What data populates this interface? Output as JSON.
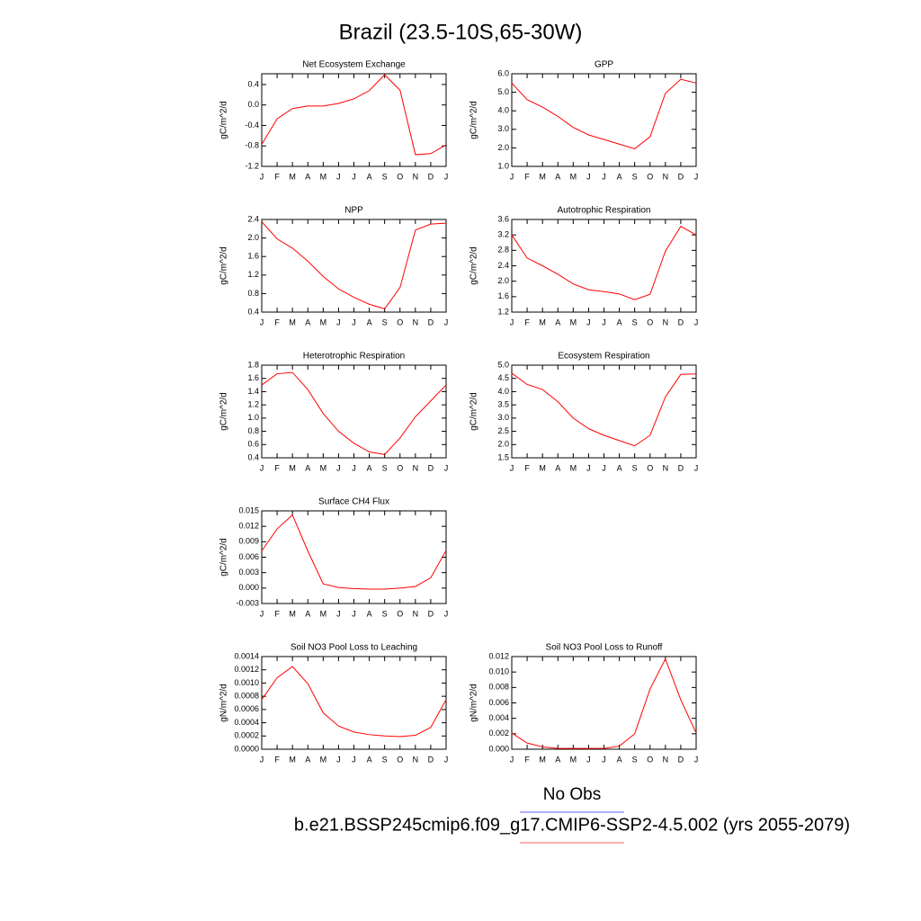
{
  "title": "Brazil (23.5-10S,65-30W)",
  "chart_data": [
    {
      "type": "line",
      "title": "Net Ecosystem Exchange",
      "ylabel": "gC/m^2/d",
      "categories": [
        "J",
        "F",
        "M",
        "A",
        "M",
        "J",
        "J",
        "A",
        "S",
        "O",
        "N",
        "D",
        "J"
      ],
      "series": [
        {
          "color": "#ff0000",
          "values": [
            -0.77,
            -0.27,
            -0.07,
            -0.02,
            -0.02,
            0.03,
            0.12,
            0.28,
            0.59,
            0.29,
            -0.97,
            -0.95,
            -0.78
          ]
        }
      ],
      "ylim": [
        -1.2,
        0.61
      ],
      "yticks": [
        0.4,
        {
          "value": 0,
          "label": "0.0"
        },
        -0.4,
        -0.8,
        -1.2
      ]
    },
    {
      "type": "line",
      "title": "GPP",
      "ylabel": "gC/m^2/d",
      "categories": [
        "J",
        "F",
        "M",
        "A",
        "M",
        "J",
        "J",
        "A",
        "S",
        "O",
        "N",
        "D",
        "J"
      ],
      "series": [
        {
          "color": "#ff0000",
          "values": [
            5.5,
            4.6,
            4.2,
            3.7,
            3.1,
            2.7,
            2.45,
            2.2,
            1.95,
            2.6,
            4.95,
            5.7,
            5.5
          ]
        }
      ],
      "ylim": [
        1,
        6
      ],
      "yticks": [
        {
          "value": 1,
          "label": "1.0"
        },
        {
          "value": 2,
          "label": "2.0"
        },
        {
          "value": 3,
          "label": "3.0"
        },
        {
          "value": 4,
          "label": "4.0"
        },
        {
          "value": 5,
          "label": "5.0"
        },
        {
          "value": 6,
          "label": "6.0"
        }
      ]
    },
    {
      "type": "line",
      "title": "NPP",
      "ylabel": "gC/m^2/d",
      "categories": [
        "J",
        "F",
        "M",
        "A",
        "M",
        "J",
        "J",
        "A",
        "S",
        "O",
        "N",
        "D",
        "J"
      ],
      "series": [
        {
          "color": "#ff0000",
          "values": [
            2.35,
            1.98,
            1.78,
            1.5,
            1.17,
            0.9,
            0.72,
            0.57,
            0.47,
            0.93,
            2.17,
            2.3,
            2.32
          ]
        }
      ],
      "ylim": [
        0.4,
        2.4
      ],
      "yticks": [
        0.4,
        0.8,
        1.2,
        1.6,
        {
          "value": 2,
          "label": "2.0"
        },
        2.4
      ]
    },
    {
      "type": "line",
      "title": "Autotrophic Respiration",
      "ylabel": "gC/m^2/d",
      "categories": [
        "J",
        "F",
        "M",
        "A",
        "M",
        "J",
        "J",
        "A",
        "S",
        "O",
        "N",
        "D",
        "J"
      ],
      "series": [
        {
          "color": "#ff0000",
          "values": [
            3.2,
            2.6,
            2.4,
            2.18,
            1.93,
            1.78,
            1.73,
            1.67,
            1.52,
            1.66,
            2.78,
            3.42,
            3.2
          ]
        }
      ],
      "ylim": [
        1.2,
        3.6
      ],
      "yticks": [
        1.2,
        1.6,
        {
          "value": 2,
          "label": "2.0"
        },
        2.4,
        2.8,
        3.2,
        3.6
      ]
    },
    {
      "type": "line",
      "title": "Heterotrophic Respiration",
      "ylabel": "gC/m^2/d",
      "categories": [
        "J",
        "F",
        "M",
        "A",
        "M",
        "J",
        "J",
        "A",
        "S",
        "O",
        "N",
        "D",
        "J"
      ],
      "series": [
        {
          "color": "#ff0000",
          "values": [
            1.5,
            1.67,
            1.69,
            1.43,
            1.07,
            0.8,
            0.62,
            0.49,
            0.45,
            0.7,
            1.02,
            1.26,
            1.5
          ]
        }
      ],
      "ylim": [
        0.4,
        1.8
      ],
      "yticks": [
        0.4,
        0.6,
        0.8,
        {
          "value": 1,
          "label": "1.0"
        },
        1.2,
        1.4,
        1.6,
        1.8
      ]
    },
    {
      "type": "line",
      "title": "Ecosystem Respiration",
      "ylabel": "gC/m^2/d",
      "categories": [
        "J",
        "F",
        "M",
        "A",
        "M",
        "J",
        "J",
        "A",
        "S",
        "O",
        "N",
        "D",
        "J"
      ],
      "series": [
        {
          "color": "#ff0000",
          "values": [
            4.7,
            4.27,
            4.08,
            3.62,
            3.0,
            2.6,
            2.35,
            2.15,
            1.95,
            2.35,
            3.8,
            4.65,
            4.67
          ]
        }
      ],
      "ylim": [
        1.5,
        5
      ],
      "yticks": [
        1.5,
        {
          "value": 2,
          "label": "2.0"
        },
        2.5,
        {
          "value": 3,
          "label": "3.0"
        },
        3.5,
        {
          "value": 4,
          "label": "4.0"
        },
        4.5,
        {
          "value": 5,
          "label": "5.0"
        }
      ]
    },
    {
      "type": "line",
      "title": "Surface CH4 Flux",
      "ylabel": "gC/m^2/d",
      "categories": [
        "J",
        "F",
        "M",
        "A",
        "M",
        "J",
        "J",
        "A",
        "S",
        "O",
        "N",
        "D",
        "J"
      ],
      "series": [
        {
          "color": "#ff0000",
          "values": [
            0.0072,
            0.0115,
            0.0142,
            0.0072,
            0.0008,
            0.0001,
            -0.0001,
            -0.0002,
            -0.0002,
            0.0,
            0.0003,
            0.002,
            0.0073
          ]
        }
      ],
      "ylim": [
        -0.003,
        0.015
      ],
      "yticks": [
        -0.003,
        {
          "value": 0,
          "label": "0.000"
        },
        0.003,
        0.006,
        0.009,
        0.012,
        0.015
      ]
    },
    {
      "type": "line",
      "title": "Soil NO3 Pool Loss to Leaching",
      "ylabel": "gN/m^2/d",
      "categories": [
        "J",
        "F",
        "M",
        "A",
        "M",
        "J",
        "J",
        "A",
        "S",
        "O",
        "N",
        "D",
        "J"
      ],
      "series": [
        {
          "color": "#ff0000",
          "values": [
            0.00075,
            0.00108,
            0.00125,
            0.00099,
            0.00055,
            0.00035,
            0.00026,
            0.00022,
            0.0002,
            0.00019,
            0.00021,
            0.00033,
            0.00075
          ]
        }
      ],
      "ylim": [
        0,
        0.0014
      ],
      "yticks": [
        {
          "value": 0,
          "label": "0.0000"
        },
        0.0002,
        0.0004,
        0.0006,
        0.0008,
        {
          "value": 0.001,
          "label": "0.0010"
        },
        0.0012,
        0.0014
      ]
    },
    {
      "type": "line",
      "title": "Soil NO3 Pool Loss to Runoff",
      "ylabel": "gN/m^2/d",
      "categories": [
        "J",
        "F",
        "M",
        "A",
        "M",
        "J",
        "J",
        "A",
        "S",
        "O",
        "N",
        "D",
        "J"
      ],
      "series": [
        {
          "color": "#ff0000",
          "values": [
            0.0021,
            0.0008,
            0.0003,
            0.0001,
            0.0001,
            0.0001,
            0.0001,
            0.0004,
            0.002,
            0.0078,
            0.0117,
            0.0064,
            0.0021
          ]
        }
      ],
      "ylim": [
        0,
        0.012
      ],
      "yticks": [
        {
          "value": 0,
          "label": "0.000"
        },
        0.002,
        0.004,
        0.006,
        0.008,
        {
          "value": 0.01,
          "label": "0.010"
        },
        0.012
      ]
    }
  ],
  "legend": [
    {
      "label": "No Obs",
      "color": "#8080ff"
    },
    {
      "label": "b.e21.BSSP245cmip6.f09_g17.CMIP6-SSP2-4.5.002 (yrs 2055-2079)",
      "color": "#ff8080"
    }
  ]
}
